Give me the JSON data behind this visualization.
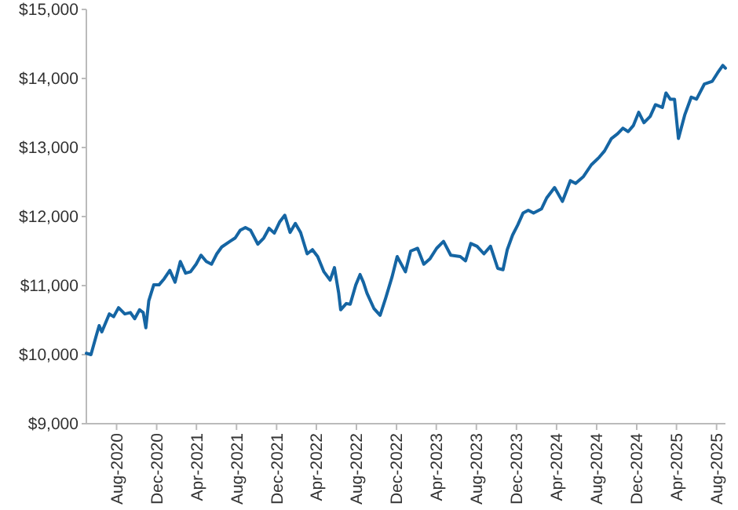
{
  "chart_data": {
    "type": "line",
    "x": [
      "2020-05-01",
      "2020-05-15",
      "2020-06-01",
      "2020-06-09",
      "2020-06-17",
      "2020-06-25",
      "2020-07-10",
      "2020-07-23",
      "2020-08-07",
      "2020-08-26",
      "2020-09-12",
      "2020-09-25",
      "2020-10-10",
      "2020-10-21",
      "2020-10-29",
      "2020-11-07",
      "2020-11-22",
      "2020-12-08",
      "2020-12-24",
      "2021-01-10",
      "2021-01-26",
      "2021-02-11",
      "2021-02-27",
      "2021-03-14",
      "2021-03-31",
      "2021-04-15",
      "2021-05-01",
      "2021-05-17",
      "2021-06-02",
      "2021-06-17",
      "2021-07-12",
      "2021-07-28",
      "2021-08-12",
      "2021-08-28",
      "2021-09-13",
      "2021-10-05",
      "2021-10-23",
      "2021-11-08",
      "2021-11-24",
      "2021-12-10",
      "2021-12-26",
      "2022-01-11",
      "2022-01-27",
      "2022-02-12",
      "2022-03-04",
      "2022-03-20",
      "2022-04-05",
      "2022-04-24",
      "2022-05-13",
      "2022-05-26",
      "2022-06-08",
      "2022-06-14",
      "2022-07-01",
      "2022-07-13",
      "2022-07-30",
      "2022-08-12",
      "2022-08-22",
      "2022-09-02",
      "2022-09-23",
      "2022-10-12",
      "2022-10-29",
      "2022-11-17",
      "2022-12-03",
      "2022-12-28",
      "2023-01-13",
      "2023-02-03",
      "2023-02-22",
      "2023-03-13",
      "2023-04-02",
      "2023-04-23",
      "2023-05-15",
      "2023-06-13",
      "2023-06-29",
      "2023-07-15",
      "2023-08-03",
      "2023-08-24",
      "2023-09-13",
      "2023-10-05",
      "2023-10-21",
      "2023-11-03",
      "2023-11-19",
      "2023-12-05",
      "2023-12-21",
      "2024-01-06",
      "2024-01-22",
      "2024-02-15",
      "2024-03-02",
      "2024-03-26",
      "2024-04-19",
      "2024-05-13",
      "2024-05-29",
      "2024-06-22",
      "2024-07-16",
      "2024-08-09",
      "2024-08-25",
      "2024-09-15",
      "2024-10-04",
      "2024-10-20",
      "2024-11-05",
      "2024-11-21",
      "2024-12-07",
      "2024-12-23",
      "2025-01-11",
      "2025-01-27",
      "2025-02-17",
      "2025-02-28",
      "2025-03-13",
      "2025-03-26",
      "2025-04-07",
      "2025-04-26",
      "2025-05-16",
      "2025-06-01",
      "2025-06-25",
      "2025-07-19",
      "2025-08-04",
      "2025-08-20",
      "2025-08-28"
    ],
    "series": [
      {
        "color": "#1565a3",
        "values": [
          10020,
          10000,
          10290,
          10420,
          10330,
          10420,
          10590,
          10550,
          10680,
          10590,
          10610,
          10520,
          10650,
          10610,
          10390,
          10780,
          11010,
          11010,
          11100,
          11220,
          11050,
          11350,
          11180,
          11200,
          11310,
          11440,
          11350,
          11310,
          11460,
          11560,
          11640,
          11690,
          11800,
          11840,
          11800,
          11600,
          11690,
          11830,
          11760,
          11920,
          12020,
          11770,
          11900,
          11770,
          11460,
          11520,
          11420,
          11200,
          11080,
          11260,
          10890,
          10650,
          10740,
          10730,
          11010,
          11160,
          11050,
          10890,
          10670,
          10570,
          10820,
          11120,
          11420,
          11200,
          11500,
          11540,
          11310,
          11390,
          11540,
          11640,
          11440,
          11420,
          11360,
          11610,
          11570,
          11460,
          11570,
          11250,
          11230,
          11520,
          11730,
          11880,
          12050,
          12090,
          12050,
          12110,
          12270,
          12420,
          12220,
          12520,
          12480,
          12580,
          12750,
          12860,
          12950,
          13130,
          13200,
          13280,
          13230,
          13320,
          13510,
          13360,
          13450,
          13620,
          13580,
          13790,
          13700,
          13700,
          13130,
          13470,
          13730,
          13700,
          13920,
          13960,
          14080,
          14190,
          14150
        ]
      }
    ],
    "xlim": [
      "2020-05-01",
      "2025-08-28"
    ],
    "xticks": [
      {
        "value": "2020-08-01",
        "label": "Aug-2020"
      },
      {
        "value": "2020-12-01",
        "label": "Dec-2020"
      },
      {
        "value": "2021-04-01",
        "label": "Apr-2021"
      },
      {
        "value": "2021-08-01",
        "label": "Aug-2021"
      },
      {
        "value": "2021-12-01",
        "label": "Dec-2021"
      },
      {
        "value": "2022-04-01",
        "label": "Apr-2022"
      },
      {
        "value": "2022-08-01",
        "label": "Aug-2022"
      },
      {
        "value": "2022-12-01",
        "label": "Dec-2022"
      },
      {
        "value": "2023-04-01",
        "label": "Apr-2023"
      },
      {
        "value": "2023-08-01",
        "label": "Aug-2023"
      },
      {
        "value": "2023-12-01",
        "label": "Dec-2023"
      },
      {
        "value": "2024-04-01",
        "label": "Apr-2024"
      },
      {
        "value": "2024-08-01",
        "label": "Aug-2024"
      },
      {
        "value": "2024-12-01",
        "label": "Dec-2024"
      },
      {
        "value": "2025-04-01",
        "label": "Apr-2025"
      },
      {
        "value": "2025-08-01",
        "label": "Aug-2025"
      }
    ],
    "ylim": [
      9000,
      15000
    ],
    "yticks": [
      {
        "value": 9000,
        "label": "$9,000"
      },
      {
        "value": 10000,
        "label": "$10,000"
      },
      {
        "value": 11000,
        "label": "$11,000"
      },
      {
        "value": 12000,
        "label": "$12,000"
      },
      {
        "value": 13000,
        "label": "$13,000"
      },
      {
        "value": 14000,
        "label": "$14,000"
      },
      {
        "value": 15000,
        "label": "$15,000"
      }
    ],
    "grid": false,
    "marker": "none",
    "line_style": "solid"
  }
}
